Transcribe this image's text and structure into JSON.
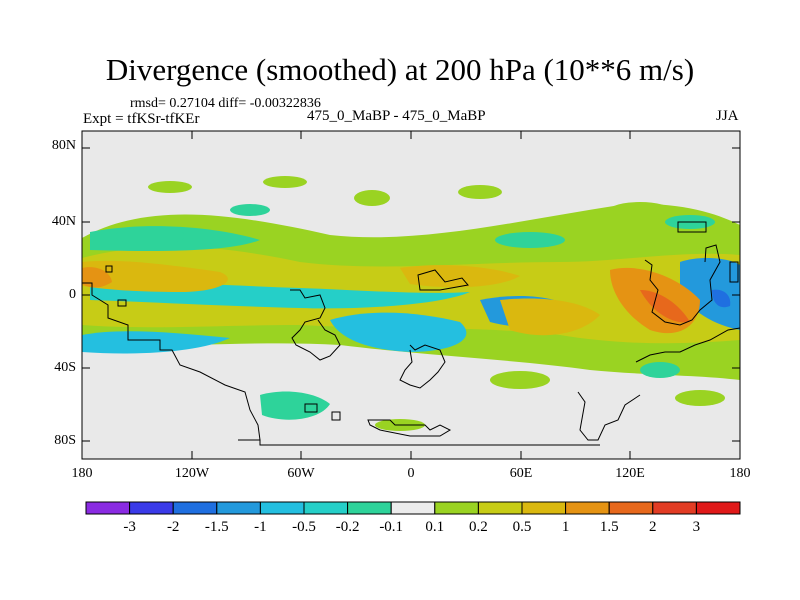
{
  "title": "Divergence (smoothed) at 200 hPa (10**6 m/s)",
  "stats": "rmsd= 0.27104 diff= -0.00322836",
  "experiment": "Expt = tfKSr-tfKEr",
  "cases": "475_0_MaBP - 475_0_MaBP",
  "season": "JJA",
  "lat_ticks": [
    "80N",
    "40N",
    "0",
    "40S",
    "80S"
  ],
  "lon_ticks": [
    "180",
    "120W",
    "60W",
    "0",
    "60E",
    "120E",
    "180"
  ],
  "colorbar": {
    "labels": [
      "-3",
      "-2",
      "-1.5",
      "-1",
      "-0.5",
      "-0.2",
      "-0.1",
      "0.1",
      "0.2",
      "0.5",
      "1",
      "1.5",
      "2",
      "3"
    ],
    "colors": [
      "#8a2be2",
      "#3a3ae8",
      "#1f6fe0",
      "#2399dc",
      "#24bfe0",
      "#25cfc8",
      "#2ed39a",
      "#ececec",
      "#9ad322",
      "#c7cc16",
      "#dab80f",
      "#e59313",
      "#e7681c",
      "#e23c24",
      "#e01919"
    ]
  }
}
